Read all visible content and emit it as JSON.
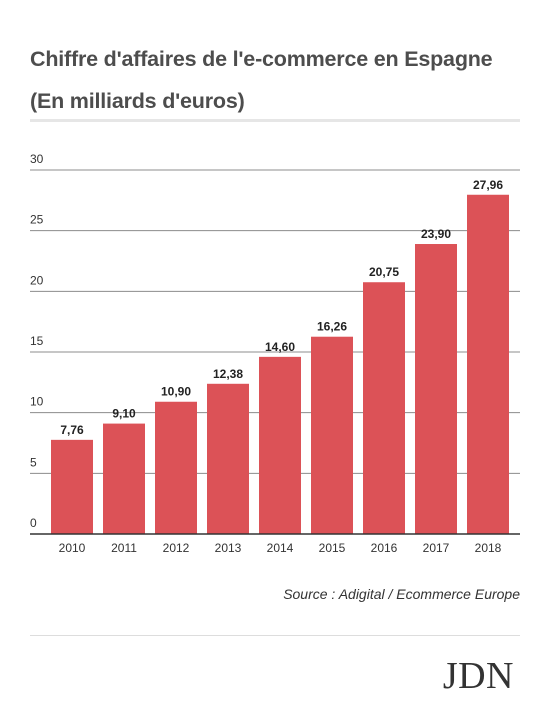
{
  "header": {
    "title_line1": "Chiffre d'affaires de l'e-commerce en Espagne",
    "title_line2": "(En milliards d'euros)"
  },
  "chart_data": {
    "type": "bar",
    "categories": [
      "2010",
      "2011",
      "2012",
      "2013",
      "2014",
      "2015",
      "2016",
      "2017",
      "2018"
    ],
    "values": [
      7.76,
      9.1,
      10.9,
      12.38,
      14.6,
      16.26,
      20.75,
      23.9,
      27.96
    ],
    "data_labels": [
      "7,76",
      "9,10",
      "10,90",
      "12,38",
      "14,60",
      "16,26",
      "20,75",
      "23,90",
      "27,96"
    ],
    "title": "Chiffre d'affaires de l'e-commerce en Espagne",
    "subtitle": "(En milliards d'euros)",
    "ylim": [
      0,
      30
    ],
    "yticks": [
      0,
      5,
      10,
      15,
      20,
      25,
      30
    ],
    "grid": true,
    "bar_color": "#dc5257"
  },
  "footer": {
    "source": "Source : Adigital / Ecommerce Europe",
    "logo": "JDN"
  }
}
